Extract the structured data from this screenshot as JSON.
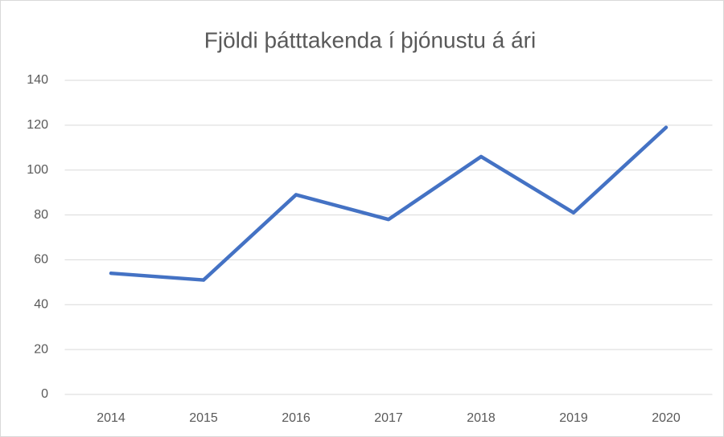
{
  "chart_data": {
    "type": "line",
    "title": "Fjöldi þátttakenda í þjónustu á ári",
    "categories": [
      "2014",
      "2015",
      "2016",
      "2017",
      "2018",
      "2019",
      "2020"
    ],
    "values": [
      54,
      51,
      89,
      78,
      106,
      81,
      119
    ],
    "color": "#4472c4",
    "ylim": [
      0,
      140
    ],
    "yticks": [
      0,
      20,
      40,
      60,
      80,
      100,
      120,
      140
    ],
    "grid": true
  }
}
